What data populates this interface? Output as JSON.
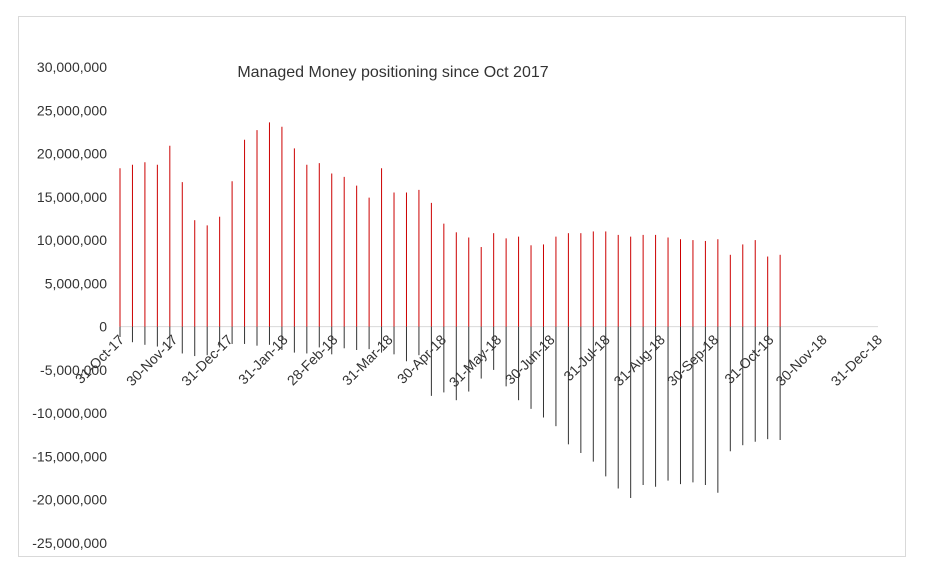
{
  "chart_data": {
    "type": "bar",
    "title": "Managed Money positioning since Oct 2017",
    "xlabel": "",
    "ylabel": "",
    "ylim": [
      -25000000,
      30000000
    ],
    "yticks": [
      -25000000,
      -20000000,
      -15000000,
      -10000000,
      -5000000,
      0,
      5000000,
      10000000,
      15000000,
      20000000,
      25000000,
      30000000
    ],
    "ytick_labels": [
      "-25,000,000",
      "-20,000,000",
      "-15,000,000",
      "-10,000,000",
      "-5,000,000",
      "0",
      "5,000,000",
      "10,000,000",
      "15,000,000",
      "20,000,000",
      "25,000,000",
      "30,000,000"
    ],
    "xlim": [
      "2017-10-31",
      "2018-12-31"
    ],
    "xtick_dates": [
      "2017-10-31",
      "2017-11-30",
      "2017-12-31",
      "2018-01-31",
      "2018-02-28",
      "2018-03-31",
      "2018-04-30",
      "2018-05-31",
      "2018-06-30",
      "2018-07-31",
      "2018-08-31",
      "2018-09-30",
      "2018-10-31",
      "2018-11-30",
      "2018-12-31"
    ],
    "xtick_labels": [
      "31-Oct-17",
      "30-Nov-17",
      "31-Dec-17",
      "31-Jan-18",
      "28-Feb-18",
      "31-Mar-18",
      "30-Apr-18",
      "31-May-18",
      "30-Jun-18",
      "31-Jul-18",
      "31-Aug-18",
      "30-Sep-18",
      "31-Oct-18",
      "30-Nov-18",
      "31-Dec-18"
    ],
    "grid": false,
    "legend": "none",
    "x": [
      "2017-10-31",
      "2017-11-07",
      "2017-11-14",
      "2017-11-21",
      "2017-11-28",
      "2017-12-05",
      "2017-12-12",
      "2017-12-19",
      "2017-12-26",
      "2018-01-02",
      "2018-01-09",
      "2018-01-16",
      "2018-01-23",
      "2018-01-30",
      "2018-02-06",
      "2018-02-13",
      "2018-02-20",
      "2018-02-27",
      "2018-03-06",
      "2018-03-13",
      "2018-03-20",
      "2018-03-27",
      "2018-04-03",
      "2018-04-10",
      "2018-04-17",
      "2018-04-24",
      "2018-05-01",
      "2018-05-08",
      "2018-05-15",
      "2018-05-22",
      "2018-05-29",
      "2018-06-05",
      "2018-06-12",
      "2018-06-19",
      "2018-06-26",
      "2018-07-03",
      "2018-07-10",
      "2018-07-17",
      "2018-07-24",
      "2018-07-31",
      "2018-08-07",
      "2018-08-14",
      "2018-08-21",
      "2018-08-28",
      "2018-09-04",
      "2018-09-11",
      "2018-09-18",
      "2018-09-25",
      "2018-10-02",
      "2018-10-09",
      "2018-10-16",
      "2018-10-23",
      "2018-10-30",
      "2018-11-06"
    ],
    "series": [
      {
        "color": "#cc0000",
        "values": [
          18300000,
          18700000,
          19000000,
          18700000,
          20900000,
          16700000,
          12300000,
          11700000,
          12700000,
          16800000,
          21600000,
          22700000,
          23600000,
          23100000,
          20600000,
          18700000,
          18900000,
          17700000,
          17300000,
          16300000,
          14900000,
          18300000,
          15500000,
          15500000,
          15800000,
          14300000,
          11900000,
          10900000,
          10300000,
          9200000,
          10800000,
          10200000,
          10400000,
          9400000,
          9500000,
          10400000,
          10800000,
          10800000,
          11000000,
          11000000,
          10600000,
          10400000,
          10600000,
          10600000,
          10300000,
          10100000,
          10000000,
          9900000,
          10100000,
          8300000,
          9500000,
          10000000,
          8100000,
          8300000
        ]
      },
      {
        "color": "#333333",
        "values": [
          -1200000,
          -1800000,
          -2100000,
          -2300000,
          -2600000,
          -3100000,
          -3400000,
          -3300000,
          -2400000,
          -2000000,
          -2000000,
          -2200000,
          -2100000,
          -2700000,
          -3000000,
          -3100000,
          -2400000,
          -3200000,
          -2500000,
          -2700000,
          -2600000,
          -3000000,
          -3200000,
          -4000000,
          -3300000,
          -8000000,
          -7600000,
          -8500000,
          -7500000,
          -6000000,
          -5000000,
          -6900000,
          -8500000,
          -9500000,
          -10500000,
          -11500000,
          -13600000,
          -14600000,
          -15600000,
          -17300000,
          -18700000,
          -19800000,
          -18300000,
          -18500000,
          -17800000,
          -18200000,
          -18000000,
          -18300000,
          -19200000,
          -14400000,
          -13700000,
          -13300000,
          -13000000,
          -13100000
        ]
      }
    ]
  }
}
